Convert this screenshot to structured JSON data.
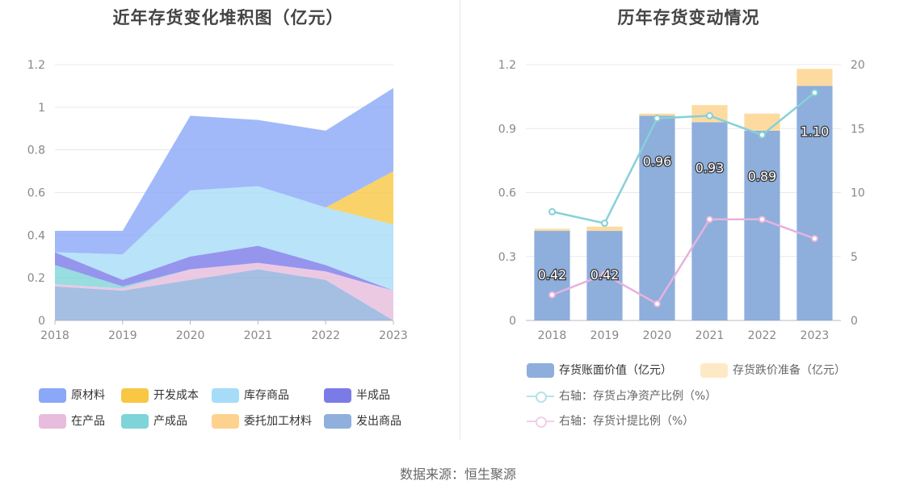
{
  "source": "数据来源：恒生聚源",
  "chart_data": [
    {
      "type": "area",
      "title": "近年存货变化堆积图（亿元）",
      "x": [
        "2018",
        "2019",
        "2020",
        "2021",
        "2022",
        "2023"
      ],
      "ylim": [
        0,
        1.2
      ],
      "yticks": [
        "0",
        "0.2",
        "0.4",
        "0.6",
        "0.8",
        "1",
        "1.2"
      ],
      "stack_order": [
        "发出商品",
        "在产品",
        "产成品",
        "半成品",
        "库存商品",
        "开发成本",
        "委托加工材料",
        "原材料"
      ],
      "series": [
        {
          "name": "发出商品",
          "color": "#8fafdc",
          "values": [
            0.16,
            0.14,
            0.19,
            0.24,
            0.19,
            0.0
          ]
        },
        {
          "name": "在产品",
          "color": "#e7bcdc",
          "values": [
            0.01,
            0.01,
            0.05,
            0.03,
            0.04,
            0.14
          ]
        },
        {
          "name": "产成品",
          "color": "#7ed4d8",
          "values": [
            0.09,
            0.01,
            0.0,
            0.0,
            0.0,
            0.0
          ]
        },
        {
          "name": "半成品",
          "color": "#7b7be8",
          "values": [
            0.06,
            0.03,
            0.06,
            0.08,
            0.03,
            0.0
          ]
        },
        {
          "name": "库存商品",
          "color": "#a6dcf8",
          "values": [
            0.0,
            0.12,
            0.31,
            0.28,
            0.27,
            0.31
          ]
        },
        {
          "name": "开发成本",
          "color": "#f8c744",
          "values": [
            0.0,
            0.0,
            0.0,
            0.0,
            0.0,
            0.25
          ]
        },
        {
          "name": "委托加工材料",
          "color": "#fdd28e",
          "values": [
            0.0,
            0.0,
            0.0,
            0.0,
            0.0,
            0.0
          ]
        },
        {
          "name": "原材料",
          "color": "#8aa7f8",
          "values": [
            0.1,
            0.11,
            0.35,
            0.31,
            0.36,
            0.39
          ]
        }
      ],
      "legend": [
        {
          "name": "原材料",
          "color": "#8aa7f8"
        },
        {
          "name": "开发成本",
          "color": "#f8c744"
        },
        {
          "name": "库存商品",
          "color": "#a6dcf8"
        },
        {
          "name": "半成品",
          "color": "#7b7be8"
        },
        {
          "name": "在产品",
          "color": "#e7bcdc"
        },
        {
          "name": "产成品",
          "color": "#7ed4d8"
        },
        {
          "name": "委托加工材料",
          "color": "#fdd28e"
        },
        {
          "name": "发出商品",
          "color": "#8fafdc"
        }
      ]
    },
    {
      "type": "bar",
      "title": "历年存货变动情况",
      "categories": [
        "2018",
        "2019",
        "2020",
        "2021",
        "2022",
        "2023"
      ],
      "ylim": [
        0,
        1.2
      ],
      "yticks": [
        "0",
        "0.3",
        "0.6",
        "0.9",
        "1.2"
      ],
      "y2lim": [
        0,
        20
      ],
      "y2ticks": [
        "0",
        "5",
        "10",
        "15",
        "20"
      ],
      "series": [
        {
          "name": "存货账面价值（亿元）",
          "color": "#8eaedc",
          "values": [
            0.42,
            0.42,
            0.96,
            0.93,
            0.89,
            1.1
          ],
          "labels": [
            "0.42",
            "0.42",
            "0.96",
            "0.93",
            "0.89",
            "1.10"
          ]
        },
        {
          "name": "存货跌价准备（亿元）",
          "color": "#fddba0",
          "values": [
            0.01,
            0.02,
            0.01,
            0.08,
            0.08,
            0.08
          ]
        }
      ],
      "lines": [
        {
          "name": "右轴：存货占净资产比例（%）",
          "color": "#86d1d8",
          "values": [
            8.5,
            7.6,
            15.8,
            16.0,
            14.5,
            17.8
          ]
        },
        {
          "name": "右轴：存货计提比例（%）",
          "color": "#e5b3dd",
          "values": [
            2.0,
            3.6,
            1.3,
            7.9,
            7.9,
            6.4
          ]
        }
      ]
    }
  ]
}
